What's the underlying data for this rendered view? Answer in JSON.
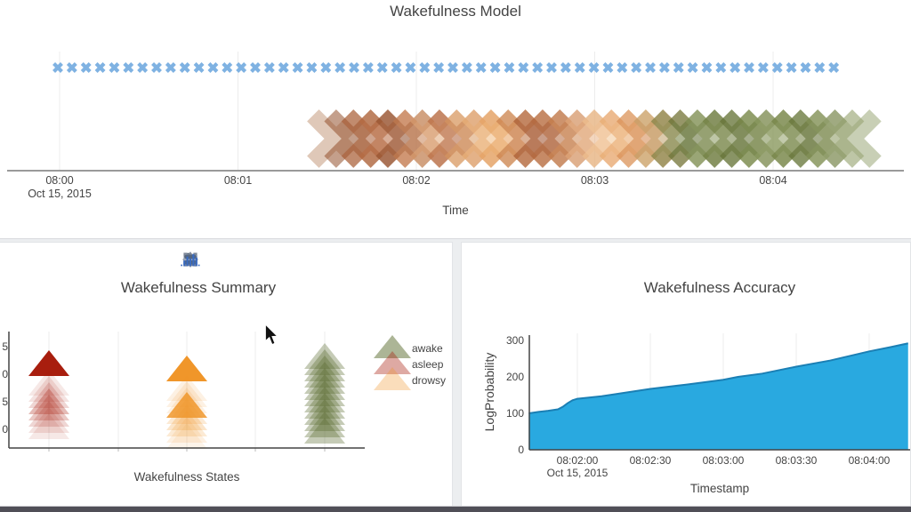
{
  "page": {
    "accent_blue": "#7fb2e2",
    "area_blue": "#29a9e0",
    "text_color": "#444444"
  },
  "modebar": {
    "items": [
      {
        "name": "download-plot-icon"
      },
      {
        "name": "zoom-icon"
      },
      {
        "name": "pan-icon"
      },
      {
        "name": "zoom-in-icon"
      },
      {
        "name": "zoom-out-icon"
      },
      {
        "name": "reset-axes-icon"
      },
      {
        "name": "autoscale-icon"
      },
      {
        "name": "show-closest-icon"
      },
      {
        "name": "compare-data-icon"
      },
      {
        "name": "plotly-logo-icon"
      }
    ]
  },
  "chart_data": [
    {
      "type": "scatter",
      "title": "Wakefulness Model",
      "xlabel": "Time",
      "date_label": "Oct 15, 2015",
      "x_ticks": [
        "08:00",
        "08:01",
        "08:02",
        "08:03",
        "08:04"
      ],
      "observations": {
        "marker": "x",
        "color": "#7fb2e2",
        "count": 56,
        "start_min": -0.01,
        "end_min": 4.34
      },
      "state_band": {
        "marker": "x-large",
        "opacity": 0.55,
        "start_min": 1.551,
        "end_min": 4.443,
        "states": [
          "asleep",
          "drowsy",
          "awake"
        ],
        "state_colors": {
          "asleep": "#9c4f2a",
          "drowsy": "#f0b980",
          "awake": "#5c6c30"
        },
        "colors": [
          "#c59a7d",
          "#94502c",
          "#a85a32",
          "#b96b42",
          "#8e4a28",
          "#c98455",
          "#e0a878",
          "#b06038",
          "#d89a62",
          "#f0b980",
          "#e8a05c",
          "#c07342",
          "#9c4f2a",
          "#b56a3e",
          "#d08a55",
          "#eab488",
          "#f3c695",
          "#e8a668",
          "#d4854a",
          "#c0a06a",
          "#6f7d3e",
          "#5c6c30",
          "#88975c",
          "#6f7d3e",
          "#5c6c30",
          "#7a8a4a",
          "#8f9e66",
          "#6f7d3e",
          "#5c6c30",
          "#88975c",
          "#9aa878"
        ]
      }
    },
    {
      "type": "triangle-stack",
      "title": "Wakefulness Summary",
      "xlabel": "Wakefulness States",
      "categories": [
        "asleep",
        "drowsy",
        "awake"
      ],
      "y_tick_digits": [
        "5",
        "0",
        "5",
        "0"
      ],
      "legend": [
        {
          "label": "awake",
          "color": "#5a6b2e"
        },
        {
          "label": "asleep",
          "color": "#a81e0e"
        },
        {
          "label": "drowsy",
          "color": "#f0962a"
        }
      ],
      "stacks": [
        {
          "category": "asleep",
          "color": "#a81e0e",
          "top": 393,
          "layers": [
            {
              "offset": 0,
              "opacity": 1.0
            },
            {
              "offset": 22,
              "opacity": 0.1
            },
            {
              "offset": 29,
              "opacity": 0.13
            },
            {
              "offset": 36,
              "opacity": 0.18
            },
            {
              "offset": 43,
              "opacity": 0.3
            },
            {
              "offset": 50,
              "opacity": 0.24
            },
            {
              "offset": 57,
              "opacity": 0.18
            },
            {
              "offset": 64,
              "opacity": 0.13
            },
            {
              "offset": 71,
              "opacity": 0.1
            }
          ]
        },
        {
          "category": "drowsy",
          "color": "#f0962a",
          "top": 399,
          "layers": [
            {
              "offset": 0,
              "opacity": 1.0
            },
            {
              "offset": 22,
              "opacity": 0.13
            },
            {
              "offset": 29,
              "opacity": 0.13
            },
            {
              "offset": 36,
              "opacity": 0.14
            },
            {
              "offset": 41,
              "opacity": 0.85
            },
            {
              "offset": 48,
              "opacity": 0.2
            },
            {
              "offset": 55,
              "opacity": 0.25
            },
            {
              "offset": 62,
              "opacity": 0.2
            },
            {
              "offset": 69,
              "opacity": 0.14
            },
            {
              "offset": 76,
              "opacity": 0.1
            }
          ]
        },
        {
          "category": "awake",
          "color": "#5a6b2e",
          "top": 385,
          "layers": [
            {
              "offset": 0,
              "opacity": 0.35
            },
            {
              "offset": 7,
              "opacity": 0.35
            },
            {
              "offset": 14,
              "opacity": 0.35
            },
            {
              "offset": 21,
              "opacity": 0.35
            },
            {
              "offset": 28,
              "opacity": 0.35
            },
            {
              "offset": 35,
              "opacity": 0.35
            },
            {
              "offset": 42,
              "opacity": 0.35
            },
            {
              "offset": 49,
              "opacity": 0.35
            },
            {
              "offset": 56,
              "opacity": 0.35
            },
            {
              "offset": 63,
              "opacity": 0.35
            },
            {
              "offset": 70,
              "opacity": 0.35
            },
            {
              "offset": 77,
              "opacity": 0.35
            },
            {
              "offset": 84,
              "opacity": 0.35
            }
          ]
        }
      ]
    },
    {
      "type": "area",
      "title": "Wakefulness Accuracy",
      "xlabel": "Timestamp",
      "ylabel": "LogProbability",
      "date_label": "Oct 15, 2015",
      "x_ticks": [
        "08:02:00",
        "08:02:30",
        "08:03:00",
        "08:03:30",
        "08:04:00"
      ],
      "y_ticks": [
        0,
        100,
        200,
        300
      ],
      "ylim": [
        0,
        300
      ],
      "fill_color": "#29a9e0",
      "line_color": "#1b7fb4",
      "points_t_seconds_value": [
        [
          100,
          100
        ],
        [
          104,
          104
        ],
        [
          108,
          107
        ],
        [
          112,
          111
        ],
        [
          114,
          118
        ],
        [
          116,
          128
        ],
        [
          118,
          136
        ],
        [
          120,
          140
        ],
        [
          130,
          147
        ],
        [
          150,
          167
        ],
        [
          165,
          179
        ],
        [
          180,
          192
        ],
        [
          186,
          200
        ],
        [
          196,
          209
        ],
        [
          210,
          228
        ],
        [
          224,
          245
        ],
        [
          240,
          270
        ],
        [
          249,
          282
        ],
        [
          256,
          292
        ]
      ]
    }
  ]
}
